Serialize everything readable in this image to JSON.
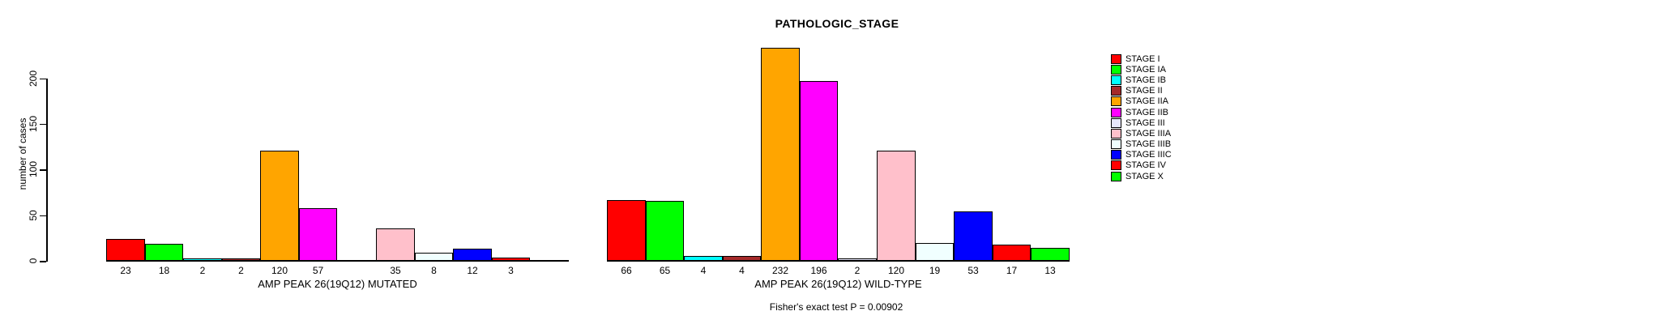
{
  "chart_data": {
    "type": "bar",
    "title": "PATHOLOGIC_STAGE",
    "ylabel": "number of cases",
    "xlabel": "",
    "yticks": [
      0,
      50,
      100,
      150,
      200
    ],
    "ylim": [
      0,
      240
    ],
    "grid": false,
    "legend_position": "right",
    "annotation": "Fisher's exact test P = 0.00902",
    "categories": [
      "STAGE I",
      "STAGE IA",
      "STAGE IB",
      "STAGE II",
      "STAGE IIA",
      "STAGE IIB",
      "STAGE III",
      "STAGE IIIA",
      "STAGE IIIB",
      "STAGE IIIC",
      "STAGE IV",
      "STAGE X"
    ],
    "legend": [
      {
        "label": "STAGE I",
        "color": "#FF0000"
      },
      {
        "label": "STAGE IA",
        "color": "#00FF00"
      },
      {
        "label": "STAGE IB",
        "color": "#00FFFF"
      },
      {
        "label": "STAGE II",
        "color": "#A52A2A"
      },
      {
        "label": "STAGE IIA",
        "color": "#FFA500"
      },
      {
        "label": "STAGE IIB",
        "color": "#FF00FF"
      },
      {
        "label": "STAGE III",
        "color": "#E6E6FA"
      },
      {
        "label": "STAGE IIIA",
        "color": "#FFC0CB"
      },
      {
        "label": "STAGE IIIB",
        "color": "#F0FFFF"
      },
      {
        "label": "STAGE IIIC",
        "color": "#0000FF"
      },
      {
        "label": "STAGE IV",
        "color": "#FF0000"
      },
      {
        "label": "STAGE X",
        "color": "#00FF00"
      }
    ],
    "series": [
      {
        "name": "AMP PEAK 26(19Q12) MUTATED",
        "values": [
          23,
          18,
          2,
          2,
          120,
          57,
          0,
          35,
          8,
          12,
          3,
          0
        ]
      },
      {
        "name": "AMP PEAK 26(19Q12) WILD-TYPE",
        "values": [
          66,
          65,
          4,
          4,
          232,
          196,
          2,
          120,
          19,
          53,
          17,
          13
        ]
      }
    ]
  }
}
